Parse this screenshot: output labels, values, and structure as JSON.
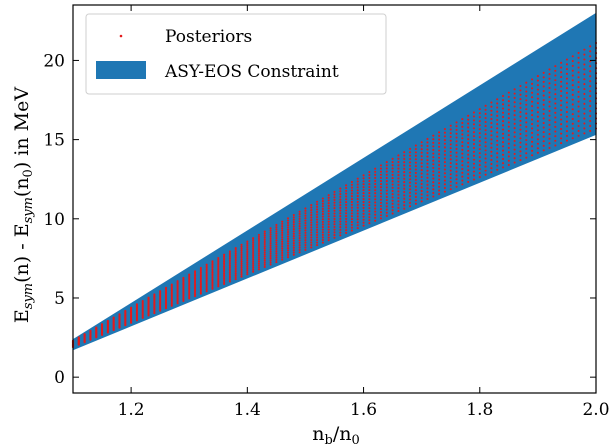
{
  "chart_data": {
    "type": "area",
    "xlabel_main": "n",
    "xlabel_sub": "b",
    "xlabel_tail": "/n",
    "xlabel_sub2": "0",
    "ylabel_parts": [
      "E",
      "sym",
      "(n) - E",
      "sym",
      "(n",
      "0",
      ") in MeV"
    ],
    "xlim": [
      1.1,
      2.0
    ],
    "ylim": [
      -1,
      23.5
    ],
    "xticks": [
      1.2,
      1.4,
      1.6,
      1.8,
      2.0
    ],
    "xtick_labels": [
      "1.2",
      "1.4",
      "1.6",
      "1.8",
      "2.0"
    ],
    "yticks": [
      0,
      5,
      10,
      15,
      20
    ],
    "ytick_labels": [
      "0",
      "5",
      "10",
      "15",
      "20"
    ],
    "band": {
      "name": "ASY-EOS Constraint",
      "color": "#1f77b4",
      "x": [
        1.1,
        2.0
      ],
      "lower": [
        1.7,
        15.3
      ],
      "upper": [
        2.4,
        23.0
      ]
    },
    "posteriors": {
      "name": "Posteriors",
      "color": "#e41a1c",
      "curve_count": 18,
      "x_start": 1.1,
      "x_end": 2.0,
      "x_step": 0.01,
      "lower": [
        1.9,
        15.7
      ],
      "upper": [
        2.3,
        21.1
      ]
    },
    "legend": {
      "placement": "top-left",
      "entries": [
        "Posteriors",
        "ASY-EOS Constraint"
      ]
    }
  }
}
